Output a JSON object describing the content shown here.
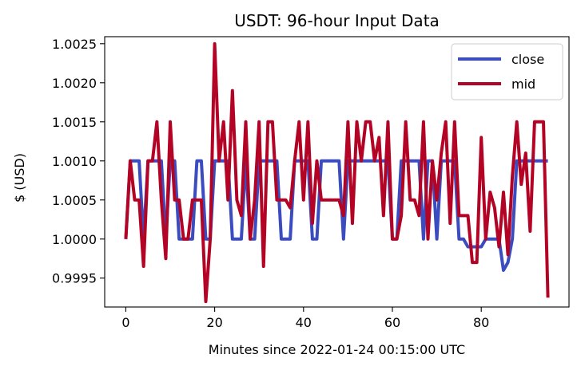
{
  "chart_data": {
    "type": "line",
    "title": "USDT: 96-hour Input Data",
    "xlabel": "Minutes since 2022-01-24 00:15:00 UTC",
    "ylabel": "$ (USD)",
    "xlim": [
      -4.75,
      99.75
    ],
    "ylim": [
      0.99913,
      1.00259
    ],
    "xticks": [
      0,
      20,
      40,
      60,
      80
    ],
    "xtick_labels": [
      "0",
      "20",
      "40",
      "60",
      "80"
    ],
    "yticks": [
      0.9995,
      1.0,
      1.0005,
      1.001,
      1.0015,
      1.002,
      1.0025
    ],
    "ytick_labels": [
      "0.9995",
      "1.0000",
      "1.0005",
      "1.0010",
      "1.0015",
      "1.0020",
      "1.0025"
    ],
    "grid": false,
    "legend_position": "top-right",
    "series": [
      {
        "name": "close",
        "color": "#3b4cc0",
        "x": [
          0,
          1,
          2,
          3,
          4,
          5,
          6,
          7,
          8,
          9,
          10,
          11,
          12,
          13,
          14,
          15,
          16,
          17,
          18,
          19,
          20,
          21,
          22,
          23,
          24,
          25,
          26,
          27,
          28,
          29,
          30,
          31,
          32,
          33,
          34,
          35,
          36,
          37,
          38,
          39,
          40,
          41,
          42,
          43,
          44,
          45,
          46,
          47,
          48,
          49,
          50,
          51,
          52,
          53,
          54,
          55,
          56,
          57,
          58,
          59,
          60,
          61,
          62,
          63,
          64,
          65,
          66,
          67,
          68,
          69,
          70,
          71,
          72,
          73,
          74,
          75,
          76,
          77,
          78,
          79,
          80,
          81,
          82,
          83,
          84,
          85,
          86,
          87,
          88,
          89,
          90,
          91,
          92,
          93,
          94,
          95
        ],
        "y": [
          1.0,
          1.001,
          1.001,
          1.001,
          1.0,
          1.001,
          1.001,
          1.001,
          1.001,
          1.0,
          1.001,
          1.001,
          1.0,
          1.0,
          1.0,
          1.0,
          1.001,
          1.001,
          1.0,
          1.0,
          1.001,
          1.001,
          1.001,
          1.001,
          1.0,
          1.0,
          1.0,
          1.001,
          1.0,
          1.0,
          1.001,
          1.001,
          1.001,
          1.001,
          1.001,
          1.0,
          1.0,
          1.0,
          1.001,
          1.001,
          1.001,
          1.001,
          1.0,
          1.0,
          1.001,
          1.001,
          1.001,
          1.001,
          1.001,
          1.0,
          1.001,
          1.001,
          1.001,
          1.001,
          1.001,
          1.001,
          1.001,
          1.001,
          1.001,
          1.001,
          1.0,
          1.0,
          1.001,
          1.001,
          1.001,
          1.001,
          1.001,
          1.0,
          1.001,
          1.001,
          1.0,
          1.001,
          1.001,
          1.001,
          1.001,
          1.0,
          1.0,
          0.9999,
          0.9999,
          0.9999,
          0.9999,
          1.0,
          1.0,
          1.0,
          1.0,
          0.9996,
          0.9997,
          1.0,
          1.001,
          1.001,
          1.001,
          1.001,
          1.001,
          1.001,
          1.001,
          1.001
        ]
      },
      {
        "name": "mid",
        "color": "#b40426",
        "x": [
          0,
          1,
          2,
          3,
          4,
          5,
          6,
          7,
          8,
          9,
          10,
          11,
          12,
          13,
          14,
          15,
          16,
          17,
          18,
          19,
          20,
          21,
          22,
          23,
          24,
          25,
          26,
          27,
          28,
          29,
          30,
          31,
          32,
          33,
          34,
          35,
          36,
          37,
          38,
          39,
          40,
          41,
          42,
          43,
          44,
          45,
          46,
          47,
          48,
          49,
          50,
          51,
          52,
          53,
          54,
          55,
          56,
          57,
          58,
          59,
          60,
          61,
          62,
          63,
          64,
          65,
          66,
          67,
          68,
          69,
          70,
          71,
          72,
          73,
          74,
          75,
          76,
          77,
          78,
          79,
          80,
          81,
          82,
          83,
          84,
          85,
          86,
          87,
          88,
          89,
          90,
          91,
          92,
          93,
          94,
          95
        ],
        "y": [
          1.0,
          1.001,
          1.0005,
          1.0005,
          0.99965,
          1.001,
          1.001,
          1.0015,
          1.0005,
          0.99975,
          1.0015,
          1.0005,
          1.0005,
          1.0,
          1.0,
          1.0005,
          1.0005,
          1.0005,
          0.9992,
          1.0,
          1.0025,
          1.001,
          1.0015,
          1.0005,
          1.0019,
          1.0005,
          1.0003,
          1.0015,
          1.0,
          1.0005,
          1.0015,
          0.99965,
          1.0015,
          1.0015,
          1.0005,
          1.0005,
          1.0005,
          1.0004,
          1.001,
          1.0015,
          1.0005,
          1.0015,
          1.0002,
          1.001,
          1.0005,
          1.0005,
          1.0005,
          1.0005,
          1.0005,
          1.0003,
          1.0015,
          1.0002,
          1.0015,
          1.001,
          1.0015,
          1.0015,
          1.001,
          1.0013,
          1.0003,
          1.0015,
          1.0,
          1.0,
          1.0003,
          1.0015,
          1.0005,
          1.0005,
          1.0003,
          1.0015,
          1.0,
          1.001,
          1.0005,
          1.0011,
          1.0015,
          1.0002,
          1.0015,
          1.0003,
          1.0003,
          1.0003,
          0.9997,
          0.9997,
          1.0013,
          1.0,
          1.0006,
          1.0004,
          0.9999,
          1.0006,
          0.9998,
          1.0008,
          1.0015,
          1.0007,
          1.0011,
          1.0001,
          1.0015,
          1.0015,
          1.0015,
          0.99925
        ]
      }
    ]
  }
}
